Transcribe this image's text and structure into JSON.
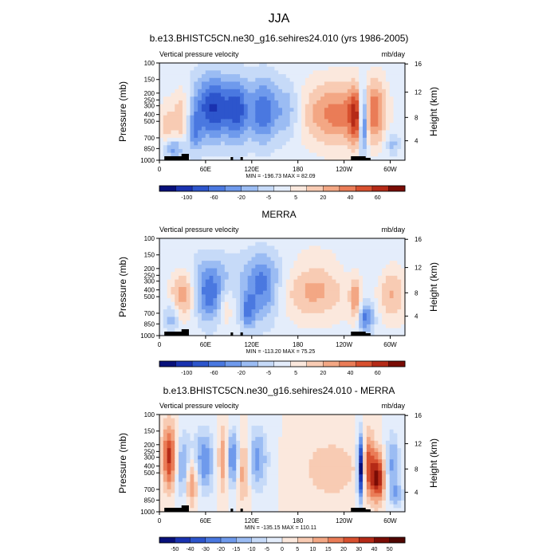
{
  "figure": {
    "title": "JJA"
  },
  "palettes": {
    "main": [
      "#08107a",
      "#1a32b0",
      "#2d55cc",
      "#4a78e0",
      "#6f9aec",
      "#9bbcf3",
      "#c6daf8",
      "#e4edfb",
      "#fbe8dd",
      "#f8cbb3",
      "#f3a784",
      "#ea7c57",
      "#d8502f",
      "#b52a17",
      "#7a0c05"
    ],
    "diff": [
      "#08107a",
      "#1a32b0",
      "#2d55cc",
      "#4a78e0",
      "#6f9aec",
      "#9bbcf3",
      "#c6daf8",
      "#e4edfb",
      "#fbe8dd",
      "#f8cbb3",
      "#f3a784",
      "#ea7c57",
      "#d8502f",
      "#b52a17",
      "#7a0c05",
      "#500601"
    ]
  },
  "chart_data": [
    {
      "type": "heatmap",
      "title": "b.e13.BHISTC5CN.ne30_g16.sehires24.010 (yrs 1986-2005)",
      "left_label": "Vertical pressure velocity",
      "right_label": "mb/day",
      "ylabel": "Pressure (mb)",
      "ylabel_right": "Height (km)",
      "x_ticks": [
        "0",
        "60E",
        "120E",
        "180",
        "120W",
        "60W"
      ],
      "y_ticks": [
        "100",
        "150",
        "200",
        "250",
        "300",
        "400",
        "500",
        "700",
        "850",
        "1000"
      ],
      "y2_ticks": [
        "16",
        "12",
        "8",
        "4"
      ],
      "minmax": "MIN = -196.73  MAX =  82.09",
      "levels": [
        "-100",
        "-60",
        "-20",
        "-5",
        "5",
        "20",
        "40",
        "60"
      ],
      "palette": "main"
    },
    {
      "type": "heatmap",
      "title": "MERRA",
      "left_label": "Vertical pressure velocity",
      "right_label": "mb/day",
      "ylabel": "Pressure (mb)",
      "ylabel_right": "Height (km)",
      "x_ticks": [
        "0",
        "60E",
        "120E",
        "180",
        "120W",
        "60W"
      ],
      "y_ticks": [
        "100",
        "150",
        "200",
        "250",
        "300",
        "400",
        "500",
        "700",
        "850",
        "1000"
      ],
      "y2_ticks": [
        "16",
        "12",
        "8",
        "4"
      ],
      "minmax": "MIN = -113.20  MAX =  75.25",
      "levels": [
        "-100",
        "-60",
        "-20",
        "-5",
        "5",
        "20",
        "40",
        "60"
      ],
      "palette": "main"
    },
    {
      "type": "heatmap",
      "title": "b.e13.BHISTC5CN.ne30_g16.sehires24.010 - MERRA",
      "left_label": "Vertical pressure velocity",
      "right_label": "mb/day",
      "ylabel": "Pressure (mb)",
      "ylabel_right": "Height (km)",
      "x_ticks": [
        "0",
        "60E",
        "120E",
        "180",
        "120W",
        "60W"
      ],
      "y_ticks": [
        "100",
        "150",
        "200",
        "250",
        "300",
        "400",
        "500",
        "700",
        "850",
        "1000"
      ],
      "y2_ticks": [
        "16",
        "12",
        "8",
        "4"
      ],
      "minmax": "MIN = -135.15  MAX = 110.11",
      "levels": [
        "-50",
        "-40",
        "-30",
        "-20",
        "-15",
        "-10",
        "-5",
        "0",
        "5",
        "10",
        "15",
        "20",
        "30",
        "40",
        "50"
      ],
      "palette": "diff"
    }
  ]
}
